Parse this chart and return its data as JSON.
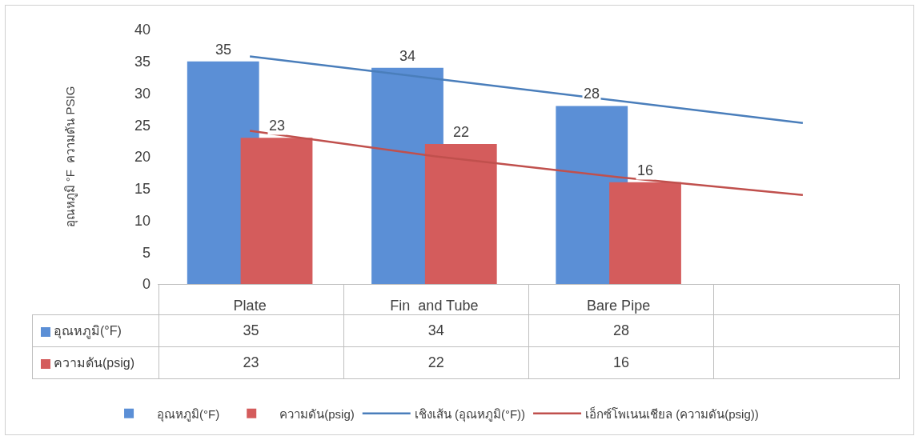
{
  "chart_data": {
    "type": "bar",
    "ylabel": "อุณหภูมิ °F  ความดัน PSIG",
    "categories": [
      "Plate",
      "Fin  and Tube",
      "Bare Pipe",
      null
    ],
    "series": [
      {
        "name": "อุณหภูมิ(°F)",
        "color": "#5b8fd6",
        "values": [
          35,
          34,
          28,
          null
        ],
        "value_labels": [
          "35",
          "34",
          "28",
          null
        ]
      },
      {
        "name": "ความดัน(psig)",
        "color": "#d45c5c",
        "values": [
          23,
          22,
          16,
          null
        ],
        "value_labels": [
          "23",
          "22",
          "16",
          null
        ]
      },
      {
        "name": "เชิงเส้น (อุณหภูมิ(°F))",
        "type": "line",
        "color": "#4a7ebb",
        "values": [
          35.8,
          32.3,
          28.8,
          25.3
        ]
      },
      {
        "name": "เอ็กซ์โพเนนเชียล (ความดัน(psig))",
        "type": "line",
        "color": "#c0504d",
        "values": [
          24.1,
          20.1,
          16.8,
          14.0
        ]
      }
    ],
    "ylim": [
      0,
      40
    ],
    "yticks": [
      0,
      5,
      10,
      15,
      20,
      25,
      30,
      35,
      40
    ],
    "grid": false,
    "legend": "bottom"
  }
}
